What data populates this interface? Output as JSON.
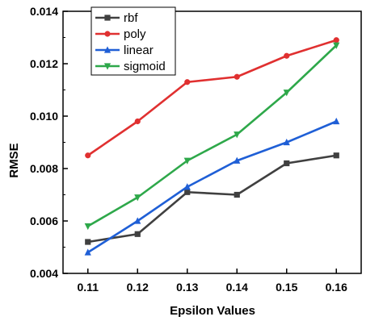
{
  "chart_data": {
    "type": "line",
    "xlabel": "Epsilon Values",
    "ylabel": "RMSE",
    "x": [
      0.11,
      0.12,
      0.13,
      0.14,
      0.15,
      0.16
    ],
    "x_tick_labels": [
      "0.11",
      "0.12",
      "0.13",
      "0.14",
      "0.15",
      "0.16"
    ],
    "y_ticks": [
      0.004,
      0.006,
      0.008,
      0.01,
      0.012,
      0.014
    ],
    "y_tick_labels": [
      "0.004",
      "0.006",
      "0.008",
      "0.010",
      "0.012",
      "0.014"
    ],
    "xlim": [
      0.105,
      0.165
    ],
    "ylim": [
      0.004,
      0.014
    ],
    "grid": false,
    "legend_position": "top-left",
    "series": [
      {
        "name": "rbf",
        "color": "#404040",
        "marker": "square",
        "values": [
          0.0052,
          0.0055,
          0.0071,
          0.007,
          0.0082,
          0.0085
        ]
      },
      {
        "name": "poly",
        "color": "#e03030",
        "marker": "circle",
        "values": [
          0.0085,
          0.0098,
          0.0113,
          0.0115,
          0.0123,
          0.0129
        ]
      },
      {
        "name": "linear",
        "color": "#1f5fd6",
        "marker": "triangle-up",
        "values": [
          0.0048,
          0.006,
          0.0073,
          0.0083,
          0.009,
          0.0098
        ]
      },
      {
        "name": "sigmoid",
        "color": "#2ea84a",
        "marker": "triangle-down",
        "values": [
          0.0058,
          0.0069,
          0.0083,
          0.0093,
          0.0109,
          0.0127
        ]
      }
    ]
  }
}
